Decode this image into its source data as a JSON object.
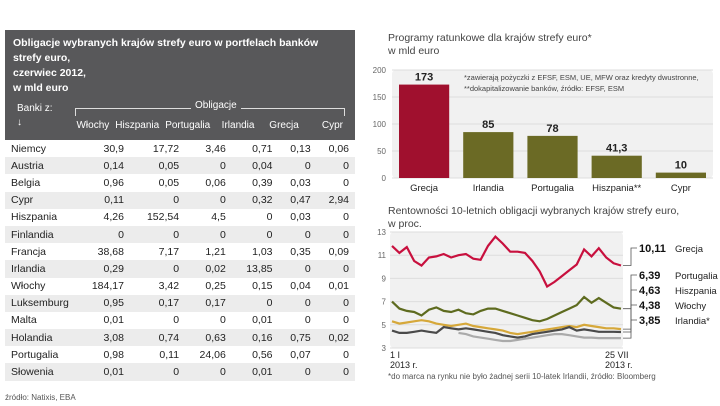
{
  "table": {
    "title_lines": [
      "Obligacje wybranych krajów strefy euro w portfelach banków strefy euro,",
      "czerwiec 2012,",
      "w mld euro"
    ],
    "row_header": "Banki z:",
    "row_header_arrow": "↓",
    "group_header": "Obligacje",
    "columns": [
      "Włochy",
      "Hiszpania",
      "Portugalia",
      "Irlandia",
      "Grecja",
      "Cypr"
    ],
    "rows": [
      {
        "name": "Niemcy",
        "values": [
          "30,9",
          "17,72",
          "3,46",
          "0,71",
          "0,13",
          "0,06"
        ]
      },
      {
        "name": "Austria",
        "values": [
          "0,14",
          "0,05",
          "0",
          "0,04",
          "0",
          "0"
        ]
      },
      {
        "name": "Belgia",
        "values": [
          "0,96",
          "0,05",
          "0,06",
          "0,39",
          "0,03",
          "0"
        ]
      },
      {
        "name": "Cypr",
        "values": [
          "0,11",
          "0",
          "0",
          "0,32",
          "0,47",
          "2,94"
        ]
      },
      {
        "name": "Hiszpania",
        "values": [
          "4,26",
          "152,54",
          "4,5",
          "0",
          "0,03",
          "0"
        ]
      },
      {
        "name": "Finlandia",
        "values": [
          "0",
          "0",
          "0",
          "0",
          "0",
          "0"
        ]
      },
      {
        "name": "Francja",
        "values": [
          "38,68",
          "7,17",
          "1,21",
          "1,03",
          "0,35",
          "0,09"
        ]
      },
      {
        "name": "Irlandia",
        "values": [
          "0,29",
          "0",
          "0,02",
          "13,85",
          "0",
          "0"
        ]
      },
      {
        "name": "Włochy",
        "values": [
          "184,17",
          "3,42",
          "0,25",
          "0,15",
          "0,04",
          "0,01"
        ]
      },
      {
        "name": "Luksemburg",
        "values": [
          "0,95",
          "0,17",
          "0,17",
          "0",
          "0",
          "0"
        ]
      },
      {
        "name": "Malta",
        "values": [
          "0,01",
          "0",
          "0",
          "0,01",
          "0",
          "0"
        ]
      },
      {
        "name": "Holandia",
        "values": [
          "3,08",
          "0,74",
          "0,63",
          "0,16",
          "0,75",
          "0,02"
        ]
      },
      {
        "name": "Portugalia",
        "values": [
          "0,98",
          "0,11",
          "24,06",
          "0,56",
          "0,07",
          "0"
        ]
      },
      {
        "name": "Słowenia",
        "values": [
          "0,01",
          "0",
          "0",
          "0,01",
          "0",
          "0"
        ]
      }
    ],
    "source": "źródło: Natixis, EBA"
  },
  "chart_data": [
    {
      "type": "bar",
      "title": "Programy ratunkowe dla krajów strefy euro*",
      "subtitle": "w mld euro",
      "categories": [
        "Grecja",
        "Irlandia",
        "Portugalia",
        "Hiszpania**",
        "Cypr"
      ],
      "values": [
        173,
        85,
        78,
        41.3,
        10
      ],
      "labels": [
        "173",
        "85",
        "78",
        "41,3",
        "10"
      ],
      "colors": [
        "#a0102e",
        "#6b6a25",
        "#6b6a25",
        "#6b6a25",
        "#6b6a25"
      ],
      "ylim": [
        0,
        200
      ],
      "yticks": [
        0,
        50,
        100,
        150,
        200
      ],
      "notes": [
        "*zawierają pożyczki z EFSF, ESM, UE, MFW oraz kredyty dwustronne,",
        "**dokapitalizowanie banków, źródło: EFSF, ESM"
      ]
    },
    {
      "type": "line",
      "title": "Rentowności 10-letnich obligacji wybranych krajów strefy euro,",
      "subtitle": "w proc.",
      "ylim": [
        3,
        13
      ],
      "yticks": [
        3,
        5,
        7,
        9,
        11,
        13
      ],
      "xlabels": [
        [
          "1 I",
          "2013 r."
        ],
        [
          "25 VII",
          "2013 r."
        ]
      ],
      "series": [
        {
          "name": "Grecja",
          "last": "10,11",
          "color": "#c8103e",
          "values": [
            11.8,
            11.2,
            11.7,
            10.5,
            10.1,
            10.8,
            10.9,
            11.1,
            10.8,
            11.0,
            11.1,
            10.7,
            10.6,
            11.8,
            12.6,
            12.0,
            11.3,
            11.3,
            11.2,
            10.5,
            9.6,
            8.3,
            8.7,
            9.2,
            9.7,
            10.2,
            11.5,
            10.9,
            11.6,
            10.8,
            10.3,
            10.11
          ]
        },
        {
          "name": "Portugalia",
          "last": "6,39",
          "color": "#5e6b1f",
          "values": [
            7.0,
            6.4,
            6.2,
            6.1,
            5.8,
            6.3,
            6.5,
            6.2,
            6.1,
            6.3,
            6.0,
            5.9,
            6.2,
            6.4,
            6.4,
            6.2,
            6.0,
            5.8,
            5.6,
            5.4,
            5.3,
            5.5,
            5.8,
            6.1,
            6.4,
            6.7,
            7.4,
            6.9,
            7.3,
            6.9,
            6.5,
            6.39
          ]
        },
        {
          "name": "Hiszpania",
          "last": "4,63",
          "color": "#d6a83a",
          "values": [
            5.3,
            5.1,
            5.2,
            5.3,
            5.4,
            5.3,
            5.1,
            5.0,
            4.9,
            5.0,
            5.1,
            4.9,
            4.8,
            4.7,
            4.6,
            4.5,
            4.3,
            4.2,
            4.3,
            4.4,
            4.5,
            4.6,
            4.7,
            4.8,
            4.9,
            4.8,
            5.0,
            4.9,
            4.8,
            4.7,
            4.7,
            4.63
          ]
        },
        {
          "name": "Włochy",
          "last": "4,38",
          "color": "#4a4a4a",
          "values": [
            4.5,
            4.3,
            4.3,
            4.4,
            4.5,
            4.4,
            4.3,
            4.8,
            4.7,
            4.6,
            4.7,
            4.6,
            4.5,
            4.4,
            4.3,
            4.1,
            4.0,
            3.9,
            4.0,
            4.2,
            4.3,
            4.4,
            4.5,
            4.6,
            4.8,
            4.5,
            4.6,
            4.5,
            4.4,
            4.4,
            4.4,
            4.38
          ]
        },
        {
          "name": "Irlandia*",
          "last": "3,85",
          "color": "#aaaaaa",
          "start_index": 9,
          "values": [
            null,
            null,
            null,
            null,
            null,
            null,
            null,
            null,
            null,
            4.3,
            4.2,
            4.0,
            3.9,
            3.8,
            3.7,
            3.6,
            3.6,
            3.7,
            3.8,
            3.9,
            4.0,
            4.1,
            4.2,
            4.2,
            4.1,
            4.0,
            3.9,
            3.9,
            3.85,
            3.85,
            3.85,
            3.85
          ]
        }
      ],
      "note": "*do marca na rynku nie było żadnej serii 10-latek Irlandii, źródło: Bloomberg"
    }
  ]
}
